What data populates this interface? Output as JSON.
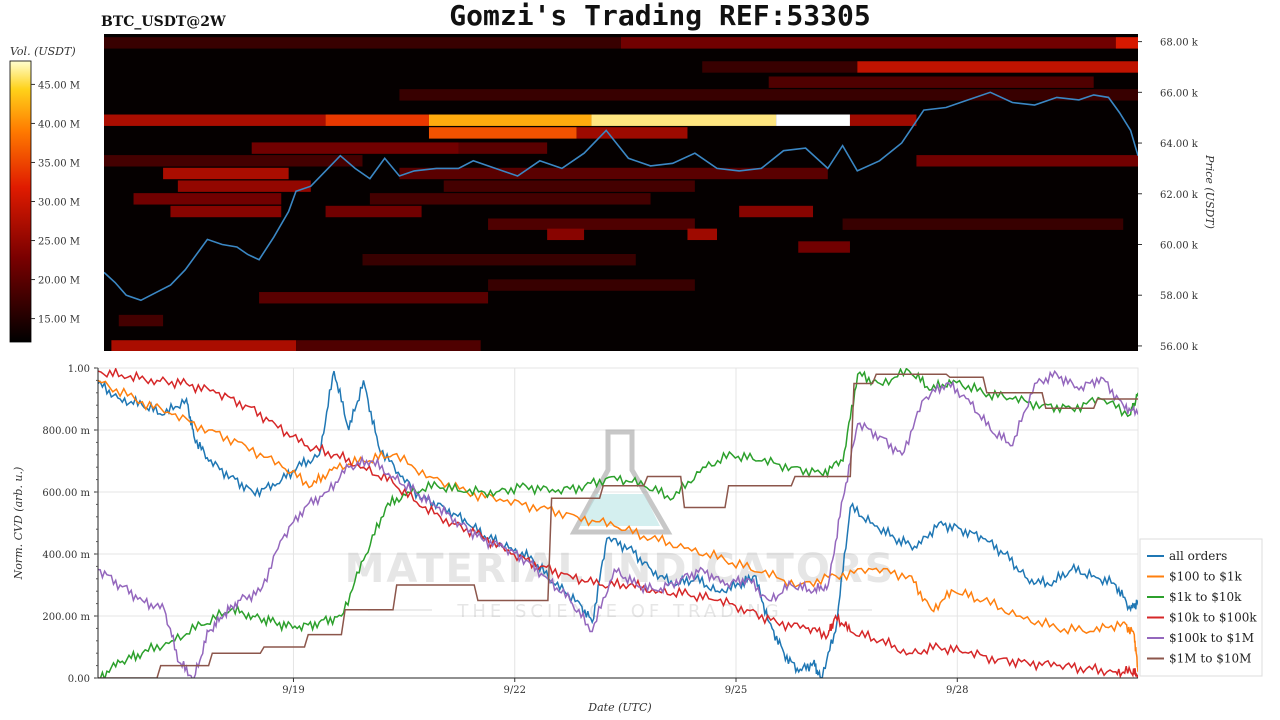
{
  "title": "Gomzi's Trading REF:53305",
  "chart_data": [
    {
      "type": "heatmap",
      "subtitle": "BTC_USDT@2W",
      "colorbar_label": "Vol. (USDT)",
      "colorbar_ticks": [
        "45.00 M",
        "40.00 M",
        "35.00 M",
        "30.00 M",
        "25.00 M",
        "20.00 M",
        "15.00 M"
      ],
      "colorbar_values": [
        45,
        40,
        35,
        30,
        25,
        20,
        15
      ],
      "colorbar_range": [
        12,
        48
      ],
      "ylabel": "Price (USDT)",
      "y_ticks": [
        "68.00 k",
        "66.00 k",
        "64.00 k",
        "62.00 k",
        "60.00 k",
        "58.00 k",
        "56.00 k"
      ],
      "y_tick_values": [
        68,
        66,
        64,
        62,
        60,
        58,
        56
      ],
      "ylim": [
        55.8,
        68.3
      ],
      "xlim": [
        0,
        14
      ],
      "price_series": {
        "name": "",
        "color": "#3b87c4",
        "x": [
          0,
          0.15,
          0.3,
          0.5,
          0.7,
          0.9,
          1.1,
          1.3,
          1.4,
          1.6,
          1.8,
          1.95,
          2.1,
          2.3,
          2.5,
          2.6,
          2.8,
          2.9,
          3.0,
          3.2,
          3.4,
          3.6,
          3.8,
          4.0,
          4.2,
          4.5,
          4.8,
          5.0,
          5.3,
          5.6,
          5.9,
          6.2,
          6.5,
          6.8,
          7.1,
          7.4,
          7.7,
          8.0,
          8.3,
          8.6,
          8.9,
          9.2,
          9.5,
          9.8,
          10.0,
          10.2,
          10.5,
          10.8,
          11.1,
          11.4,
          11.7,
          12.0,
          12.3,
          12.6,
          12.9,
          13.2,
          13.4,
          13.6,
          13.75,
          13.9,
          14.0
        ],
        "y": [
          58.9,
          58.5,
          58.0,
          57.8,
          58.1,
          58.4,
          59.0,
          59.8,
          60.2,
          60.0,
          59.9,
          59.6,
          59.4,
          60.3,
          61.3,
          62.1,
          62.3,
          62.6,
          62.9,
          63.5,
          63.0,
          62.6,
          63.4,
          62.7,
          62.9,
          63.0,
          63.0,
          63.3,
          63.0,
          62.7,
          63.3,
          63.0,
          63.6,
          64.5,
          63.4,
          63.1,
          63.2,
          63.6,
          63.0,
          62.9,
          63.0,
          63.7,
          63.8,
          63.0,
          63.9,
          62.9,
          63.3,
          64.0,
          65.3,
          65.4,
          65.7,
          66.0,
          65.6,
          65.5,
          65.8,
          65.7,
          65.9,
          65.8,
          65.2,
          64.5,
          63.5
        ]
      },
      "bands": [
        {
          "price": 67.95,
          "x0": 0.0,
          "x1": 14.0,
          "vol": 17
        },
        {
          "price": 67.95,
          "x0": 7.0,
          "x1": 13.7,
          "vol": 22
        },
        {
          "price": 67.95,
          "x0": 13.7,
          "x1": 14.0,
          "vol": 31
        },
        {
          "price": 67.0,
          "x0": 8.1,
          "x1": 10.2,
          "vol": 17
        },
        {
          "price": 67.0,
          "x0": 10.2,
          "x1": 14.0,
          "vol": 29
        },
        {
          "price": 66.4,
          "x0": 9.0,
          "x1": 13.4,
          "vol": 19
        },
        {
          "price": 65.9,
          "x0": 4.0,
          "x1": 14.0,
          "vol": 17
        },
        {
          "price": 64.9,
          "x0": 0.0,
          "x1": 3.0,
          "vol": 27
        },
        {
          "price": 64.9,
          "x0": 3.0,
          "x1": 4.4,
          "vol": 34
        },
        {
          "price": 64.9,
          "x0": 4.4,
          "x1": 6.6,
          "vol": 42
        },
        {
          "price": 64.9,
          "x0": 6.6,
          "x1": 9.1,
          "vol": 46
        },
        {
          "price": 64.9,
          "x0": 9.1,
          "x1": 10.1,
          "vol": 48
        },
        {
          "price": 64.9,
          "x0": 10.1,
          "x1": 11.0,
          "vol": 26
        },
        {
          "price": 64.4,
          "x0": 4.4,
          "x1": 6.4,
          "vol": 36
        },
        {
          "price": 64.4,
          "x0": 6.4,
          "x1": 7.9,
          "vol": 26
        },
        {
          "price": 63.8,
          "x0": 2.0,
          "x1": 4.8,
          "vol": 22
        },
        {
          "price": 63.8,
          "x0": 4.8,
          "x1": 6.0,
          "vol": 20
        },
        {
          "price": 63.3,
          "x0": 0.0,
          "x1": 3.5,
          "vol": 18
        },
        {
          "price": 63.3,
          "x0": 11.0,
          "x1": 14.0,
          "vol": 22
        },
        {
          "price": 62.8,
          "x0": 0.8,
          "x1": 2.5,
          "vol": 27
        },
        {
          "price": 62.8,
          "x0": 4.0,
          "x1": 9.8,
          "vol": 20
        },
        {
          "price": 62.3,
          "x0": 1.0,
          "x1": 2.8,
          "vol": 25
        },
        {
          "price": 62.3,
          "x0": 4.6,
          "x1": 8.0,
          "vol": 18
        },
        {
          "price": 61.8,
          "x0": 0.4,
          "x1": 2.4,
          "vol": 22
        },
        {
          "price": 61.8,
          "x0": 3.6,
          "x1": 7.4,
          "vol": 18
        },
        {
          "price": 61.3,
          "x0": 0.9,
          "x1": 2.4,
          "vol": 24
        },
        {
          "price": 61.3,
          "x0": 3.0,
          "x1": 4.3,
          "vol": 22
        },
        {
          "price": 61.3,
          "x0": 8.6,
          "x1": 9.6,
          "vol": 24
        },
        {
          "price": 60.8,
          "x0": 5.2,
          "x1": 8.0,
          "vol": 19
        },
        {
          "price": 60.8,
          "x0": 10.0,
          "x1": 13.8,
          "vol": 17
        },
        {
          "price": 60.4,
          "x0": 6.0,
          "x1": 6.5,
          "vol": 24
        },
        {
          "price": 60.4,
          "x0": 7.9,
          "x1": 8.3,
          "vol": 26
        },
        {
          "price": 59.9,
          "x0": 9.4,
          "x1": 10.1,
          "vol": 22
        },
        {
          "price": 59.4,
          "x0": 3.5,
          "x1": 7.2,
          "vol": 17
        },
        {
          "price": 58.4,
          "x0": 5.2,
          "x1": 8.0,
          "vol": 17
        },
        {
          "price": 57.9,
          "x0": 2.1,
          "x1": 5.2,
          "vol": 20
        },
        {
          "price": 57.0,
          "x0": 0.2,
          "x1": 0.8,
          "vol": 18
        },
        {
          "price": 56.0,
          "x0": 0.1,
          "x1": 2.6,
          "vol": 27
        },
        {
          "price": 56.0,
          "x0": 2.6,
          "x1": 5.1,
          "vol": 19
        }
      ]
    },
    {
      "type": "line",
      "xlabel": "Date (UTC)",
      "ylabel": "Norm. CVD (arb. u.)",
      "x_ticks": [
        "9/19",
        "9/22",
        "9/25",
        "9/28"
      ],
      "x_tick_values": [
        2.65,
        5.65,
        8.65,
        11.65
      ],
      "xlim": [
        0,
        14.1
      ],
      "y_ticks": [
        "1.00",
        "800.00 m",
        "600.00 m",
        "400.00 m",
        "200.00 m",
        "0.00"
      ],
      "y_tick_values": [
        1.0,
        0.8,
        0.6,
        0.4,
        0.2,
        0.0
      ],
      "ylim": [
        0,
        1
      ],
      "grid": true,
      "legend_position": "right",
      "series": [
        {
          "name": "all orders",
          "color": "#1f77b4",
          "x": [
            0,
            0.3,
            0.6,
            0.9,
            1.2,
            1.3,
            1.5,
            1.8,
            2.1,
            2.4,
            2.7,
            3.0,
            3.2,
            3.4,
            3.6,
            3.8,
            4.1,
            4.4,
            4.7,
            5.0,
            5.3,
            5.6,
            5.9,
            6.2,
            6.5,
            6.7,
            6.9,
            7.2,
            7.5,
            7.8,
            8.1,
            8.4,
            8.7,
            8.9,
            9.1,
            9.3,
            9.5,
            9.7,
            9.8,
            10.0,
            10.2,
            10.5,
            10.8,
            11.1,
            11.4,
            11.7,
            12.0,
            12.3,
            12.6,
            12.9,
            13.2,
            13.5,
            13.8,
            14.0,
            14.1
          ],
          "y": [
            0.95,
            0.9,
            0.88,
            0.85,
            0.9,
            0.78,
            0.7,
            0.65,
            0.6,
            0.62,
            0.68,
            0.72,
            0.99,
            0.8,
            0.96,
            0.75,
            0.65,
            0.58,
            0.55,
            0.5,
            0.45,
            0.42,
            0.38,
            0.3,
            0.25,
            0.18,
            0.45,
            0.42,
            0.35,
            0.3,
            0.32,
            0.28,
            0.3,
            0.33,
            0.18,
            0.08,
            0.02,
            0.05,
            0.0,
            0.15,
            0.55,
            0.5,
            0.45,
            0.42,
            0.5,
            0.48,
            0.45,
            0.4,
            0.32,
            0.3,
            0.35,
            0.33,
            0.3,
            0.22,
            0.25
          ]
        },
        {
          "name": "$100 to $1k",
          "color": "#ff7f0e",
          "x": [
            0,
            0.5,
            1.0,
            1.5,
            2.0,
            2.5,
            2.9,
            3.2,
            3.6,
            4.0,
            4.5,
            5.0,
            5.5,
            6.0,
            6.5,
            7.0,
            7.5,
            8.0,
            8.5,
            9.0,
            9.5,
            10.0,
            10.5,
            11.0,
            11.3,
            11.6,
            12.0,
            12.5,
            13.0,
            13.5,
            13.9,
            14.05,
            14.1
          ],
          "y": [
            0.96,
            0.9,
            0.85,
            0.8,
            0.75,
            0.68,
            0.62,
            0.68,
            0.7,
            0.72,
            0.65,
            0.6,
            0.57,
            0.55,
            0.52,
            0.49,
            0.45,
            0.42,
            0.38,
            0.34,
            0.3,
            0.33,
            0.35,
            0.33,
            0.22,
            0.28,
            0.25,
            0.2,
            0.16,
            0.15,
            0.18,
            0.14,
            0.02
          ]
        },
        {
          "name": "$1k to $10k",
          "color": "#2ca02c",
          "x": [
            0,
            0.3,
            0.6,
            1.0,
            1.4,
            1.8,
            2.1,
            2.4,
            2.7,
            3.0,
            3.3,
            3.6,
            3.9,
            4.2,
            4.6,
            5.0,
            5.4,
            5.8,
            6.2,
            6.6,
            7.0,
            7.4,
            7.8,
            8.2,
            8.6,
            9.0,
            9.4,
            9.8,
            10.1,
            10.3,
            10.6,
            11.0,
            11.3,
            11.6,
            12.0,
            12.4,
            12.8,
            13.2,
            13.6,
            14.0,
            14.1
          ],
          "y": [
            0.0,
            0.05,
            0.08,
            0.12,
            0.17,
            0.22,
            0.2,
            0.18,
            0.16,
            0.18,
            0.2,
            0.38,
            0.55,
            0.6,
            0.62,
            0.6,
            0.6,
            0.62,
            0.6,
            0.62,
            0.65,
            0.62,
            0.58,
            0.68,
            0.72,
            0.7,
            0.68,
            0.66,
            0.7,
            0.98,
            0.95,
            0.99,
            0.93,
            0.96,
            0.92,
            0.9,
            0.88,
            0.87,
            0.9,
            0.85,
            0.92
          ]
        },
        {
          "name": "$10k to $100k",
          "color": "#d62728",
          "x": [
            0,
            0.4,
            0.8,
            1.2,
            1.6,
            2.0,
            2.4,
            2.8,
            3.2,
            3.6,
            4.0,
            4.4,
            4.8,
            5.2,
            5.6,
            6.0,
            6.4,
            6.8,
            7.2,
            7.6,
            8.0,
            8.4,
            8.8,
            9.2,
            9.6,
            9.9,
            10.0,
            10.2,
            10.6,
            11.0,
            11.4,
            11.8,
            12.2,
            12.6,
            13.0,
            13.4,
            13.8,
            14.0,
            14.1
          ],
          "y": [
            0.99,
            0.97,
            0.96,
            0.95,
            0.92,
            0.88,
            0.82,
            0.75,
            0.72,
            0.68,
            0.63,
            0.55,
            0.5,
            0.46,
            0.4,
            0.36,
            0.33,
            0.3,
            0.3,
            0.28,
            0.27,
            0.25,
            0.22,
            0.18,
            0.16,
            0.14,
            0.2,
            0.15,
            0.12,
            0.08,
            0.1,
            0.08,
            0.06,
            0.05,
            0.04,
            0.03,
            0.02,
            0.02,
            0.01
          ]
        },
        {
          "name": "$100k to $1M",
          "color": "#9467bd",
          "x": [
            0,
            0.3,
            0.6,
            0.9,
            1.1,
            1.3,
            1.5,
            1.7,
            1.9,
            2.2,
            2.5,
            2.8,
            3.1,
            3.4,
            3.7,
            4.0,
            4.3,
            4.6,
            4.9,
            5.2,
            5.5,
            5.8,
            6.1,
            6.4,
            6.7,
            7.0,
            7.3,
            7.6,
            7.9,
            8.2,
            8.5,
            8.8,
            9.1,
            9.4,
            9.7,
            9.9,
            10.1,
            10.3,
            10.6,
            10.9,
            11.2,
            11.5,
            11.8,
            12.1,
            12.4,
            12.7,
            13.0,
            13.3,
            13.6,
            13.9,
            14.1
          ],
          "y": [
            0.35,
            0.3,
            0.25,
            0.22,
            0.05,
            0.0,
            0.15,
            0.2,
            0.25,
            0.28,
            0.45,
            0.55,
            0.6,
            0.68,
            0.7,
            0.65,
            0.6,
            0.55,
            0.5,
            0.45,
            0.42,
            0.38,
            0.32,
            0.25,
            0.15,
            0.35,
            0.3,
            0.28,
            0.32,
            0.35,
            0.3,
            0.32,
            0.25,
            0.3,
            0.28,
            0.3,
            0.58,
            0.82,
            0.78,
            0.72,
            0.9,
            0.95,
            0.9,
            0.8,
            0.75,
            0.95,
            0.98,
            0.93,
            0.97,
            0.88,
            0.85
          ]
        },
        {
          "name": "$1M to $10M",
          "color": "#8c564b",
          "x": [
            0,
            0.8,
            0.85,
            1.5,
            1.55,
            2.2,
            2.25,
            2.8,
            2.85,
            3.3,
            3.35,
            4.0,
            4.05,
            4.5,
            4.55,
            5.1,
            5.15,
            6.1,
            6.15,
            6.8,
            6.85,
            7.4,
            7.45,
            7.9,
            7.95,
            8.5,
            8.55,
            9.4,
            9.45,
            10.2,
            10.25,
            10.5,
            10.55,
            11.5,
            11.55,
            12.0,
            12.05,
            12.8,
            12.85,
            13.5,
            13.55,
            14.1
          ],
          "y": [
            0.0,
            0.0,
            0.04,
            0.04,
            0.08,
            0.08,
            0.1,
            0.1,
            0.14,
            0.14,
            0.22,
            0.22,
            0.3,
            0.3,
            0.3,
            0.3,
            0.25,
            0.25,
            0.58,
            0.58,
            0.62,
            0.62,
            0.65,
            0.65,
            0.55,
            0.55,
            0.62,
            0.62,
            0.65,
            0.65,
            0.95,
            0.95,
            0.98,
            0.98,
            0.97,
            0.97,
            0.92,
            0.92,
            0.87,
            0.87,
            0.9,
            0.9
          ]
        }
      ]
    }
  ],
  "watermark": {
    "brand": "MATERIAL INDICATORS",
    "tagline": "THE SCIENCE OF TRADING",
    "icon": "flask-icon"
  }
}
